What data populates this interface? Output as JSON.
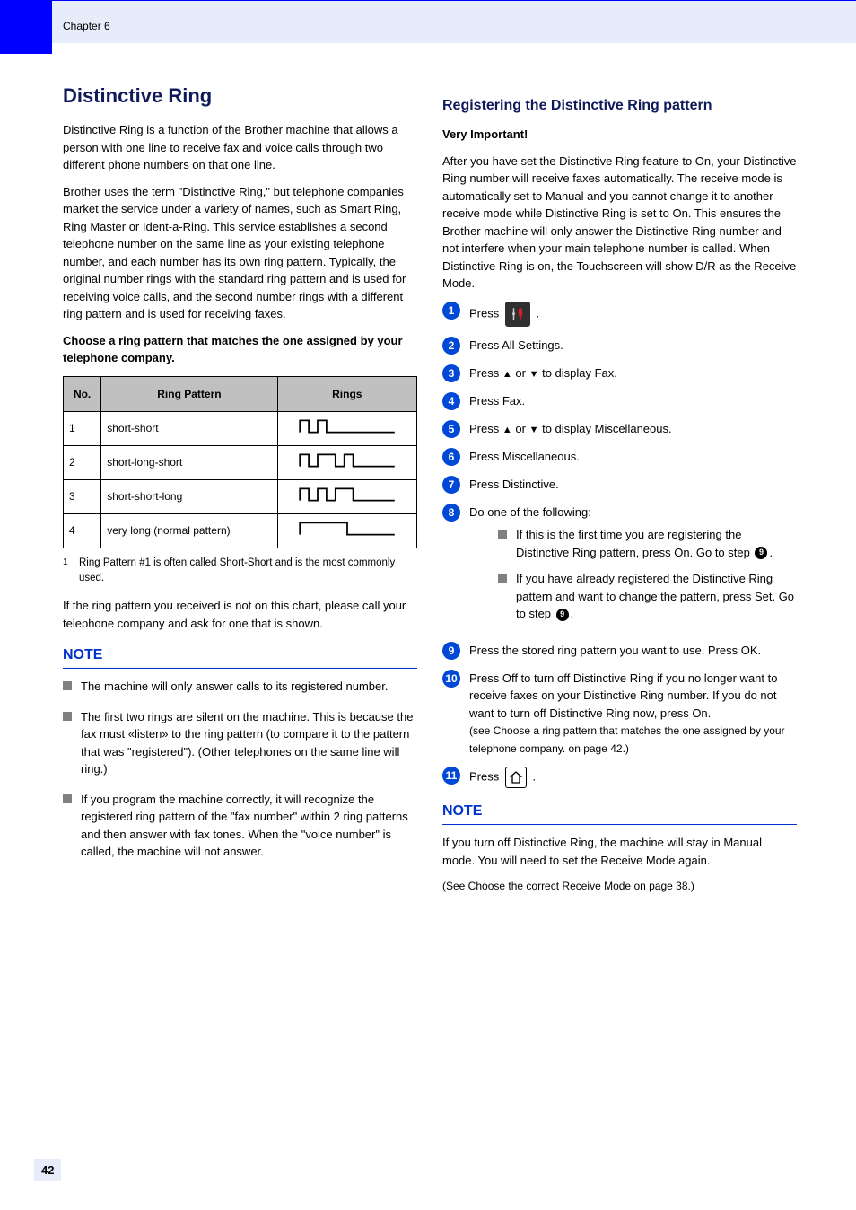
{
  "chapter": {
    "label": "Chapter 6"
  },
  "left": {
    "heading": "Distinctive Ring",
    "intro1": "Distinctive Ring is a function of the Brother machine that allows a person with one line to receive fax and voice calls through two different phone numbers on that one line.",
    "intro2": "Brother uses the term \"Distinctive Ring,\" but telephone companies market the service under a variety of names, such as Smart Ring, Ring Master or Ident-a-Ring. This service establishes a second telephone number on the same line as your existing telephone number, and each number has its own ring pattern. Typically, the original number rings with the standard ring pattern and is used for receiving voice calls, and the second number rings with a different ring pattern and is used for receiving faxes.",
    "pattern_heading": "Choose a ring pattern that matches the one assigned by your telephone company.",
    "table": {
      "headers": [
        "No.",
        "Ring Pattern",
        "Rings"
      ],
      "rows": [
        {
          "no": "1",
          "name": "short-short",
          "pulses": [
            3,
            3
          ],
          "gap": 3
        },
        {
          "no": "2",
          "name": "short-long-short",
          "pulses": [
            3,
            6,
            3
          ],
          "gap": 3
        },
        {
          "no": "3",
          "name": "short-short-long",
          "pulses": [
            3,
            3,
            6
          ],
          "gap": 3
        },
        {
          "no": "4",
          "name": "very long (normal pattern)",
          "pulses": [
            16
          ],
          "gap": 0
        }
      ]
    },
    "footnote": {
      "sup": "1",
      "text": "Ring Pattern #1 is often called Short-Short and is the most commonly used."
    },
    "pattern_closing": "If the ring pattern you received is not on this chart, please call your telephone company and ask for one that is shown.",
    "note_label": "NOTE",
    "notes": [
      "The machine will only answer calls to its registered number.",
      "The first two rings are silent on the machine. This is because the fax must «listen» to the ring pattern (to compare it to the pattern that was \"registered\"). (Other telephones on the same line will ring.)",
      "If you program the machine correctly, it will recognize the registered ring pattern of the \"fax number\" within 2 ring patterns and then answer with fax tones. When the \"voice number\" is called, the machine will not answer."
    ]
  },
  "right": {
    "heading": "Registering the Distinctive Ring pattern",
    "sub_heading": "Very Important!",
    "intro": "After you have set the Distinctive Ring feature to On, your Distinctive Ring number will receive faxes automatically. The receive mode is automatically set to Manual and you cannot change it to another receive mode while Distinctive Ring is set to On. This ensures the Brother machine will only answer the Distinctive Ring number and not interfere when your main telephone number is called. When Distinctive Ring is on, the Touchscreen will show D/R as the Receive Mode.",
    "steps": [
      {
        "n": "1",
        "icon": "tools",
        "text_before": "Press",
        "text_after": "."
      },
      {
        "n": "2",
        "text": "Press All Settings."
      },
      {
        "n": "3",
        "text_before": "Press",
        "tri_up": "▲",
        "or": "or",
        "tri_down": "▼",
        "text_after": "to display Fax.",
        "mono": ""
      },
      {
        "n": "4",
        "text": "Press Fax."
      },
      {
        "n": "5",
        "text_before": "Press",
        "tri_up": "▲",
        "or": "or",
        "tri_down": "▼",
        "text_after": "to display Miscellaneous."
      },
      {
        "n": "6",
        "text": "Press Miscellaneous."
      },
      {
        "n": "7",
        "text": "Press Distinctive."
      },
      {
        "n": "8",
        "text": "Do one of the following:"
      },
      {
        "n": "9",
        "text": "Press the stored ring pattern you want to use. Press OK."
      },
      {
        "n": "10",
        "text": "Press Off to turn off Distinctive Ring if you no longer want to receive faxes on your Distinctive Ring number. If you do not want to turn off Distinctive Ring now, press On.",
        "extra": "(see Choose a ring pattern that matches the one assigned by your telephone company. on page 42.)"
      },
      {
        "n": "11",
        "icon": "home",
        "text_before": "Press",
        "text_after": "."
      }
    ],
    "sub_bullets": [
      {
        "text_prefix": "If this is the first time you are registering the Distinctive Ring pattern, press On. Go to step ",
        "ref": "9",
        "text_suffix": "."
      },
      {
        "text_prefix": "If you have already registered the Distinctive Ring pattern and want to change the pattern, press Set. Go to step ",
        "ref": "9",
        "text_suffix": "."
      }
    ],
    "closing_note_label": "NOTE",
    "closing_note": "If you turn off Distinctive Ring, the machine will stay in Manual mode. You will need to set the Receive Mode again.",
    "closing_ref": "(See Choose the correct Receive Mode on page 38.)"
  },
  "page_number": "42"
}
